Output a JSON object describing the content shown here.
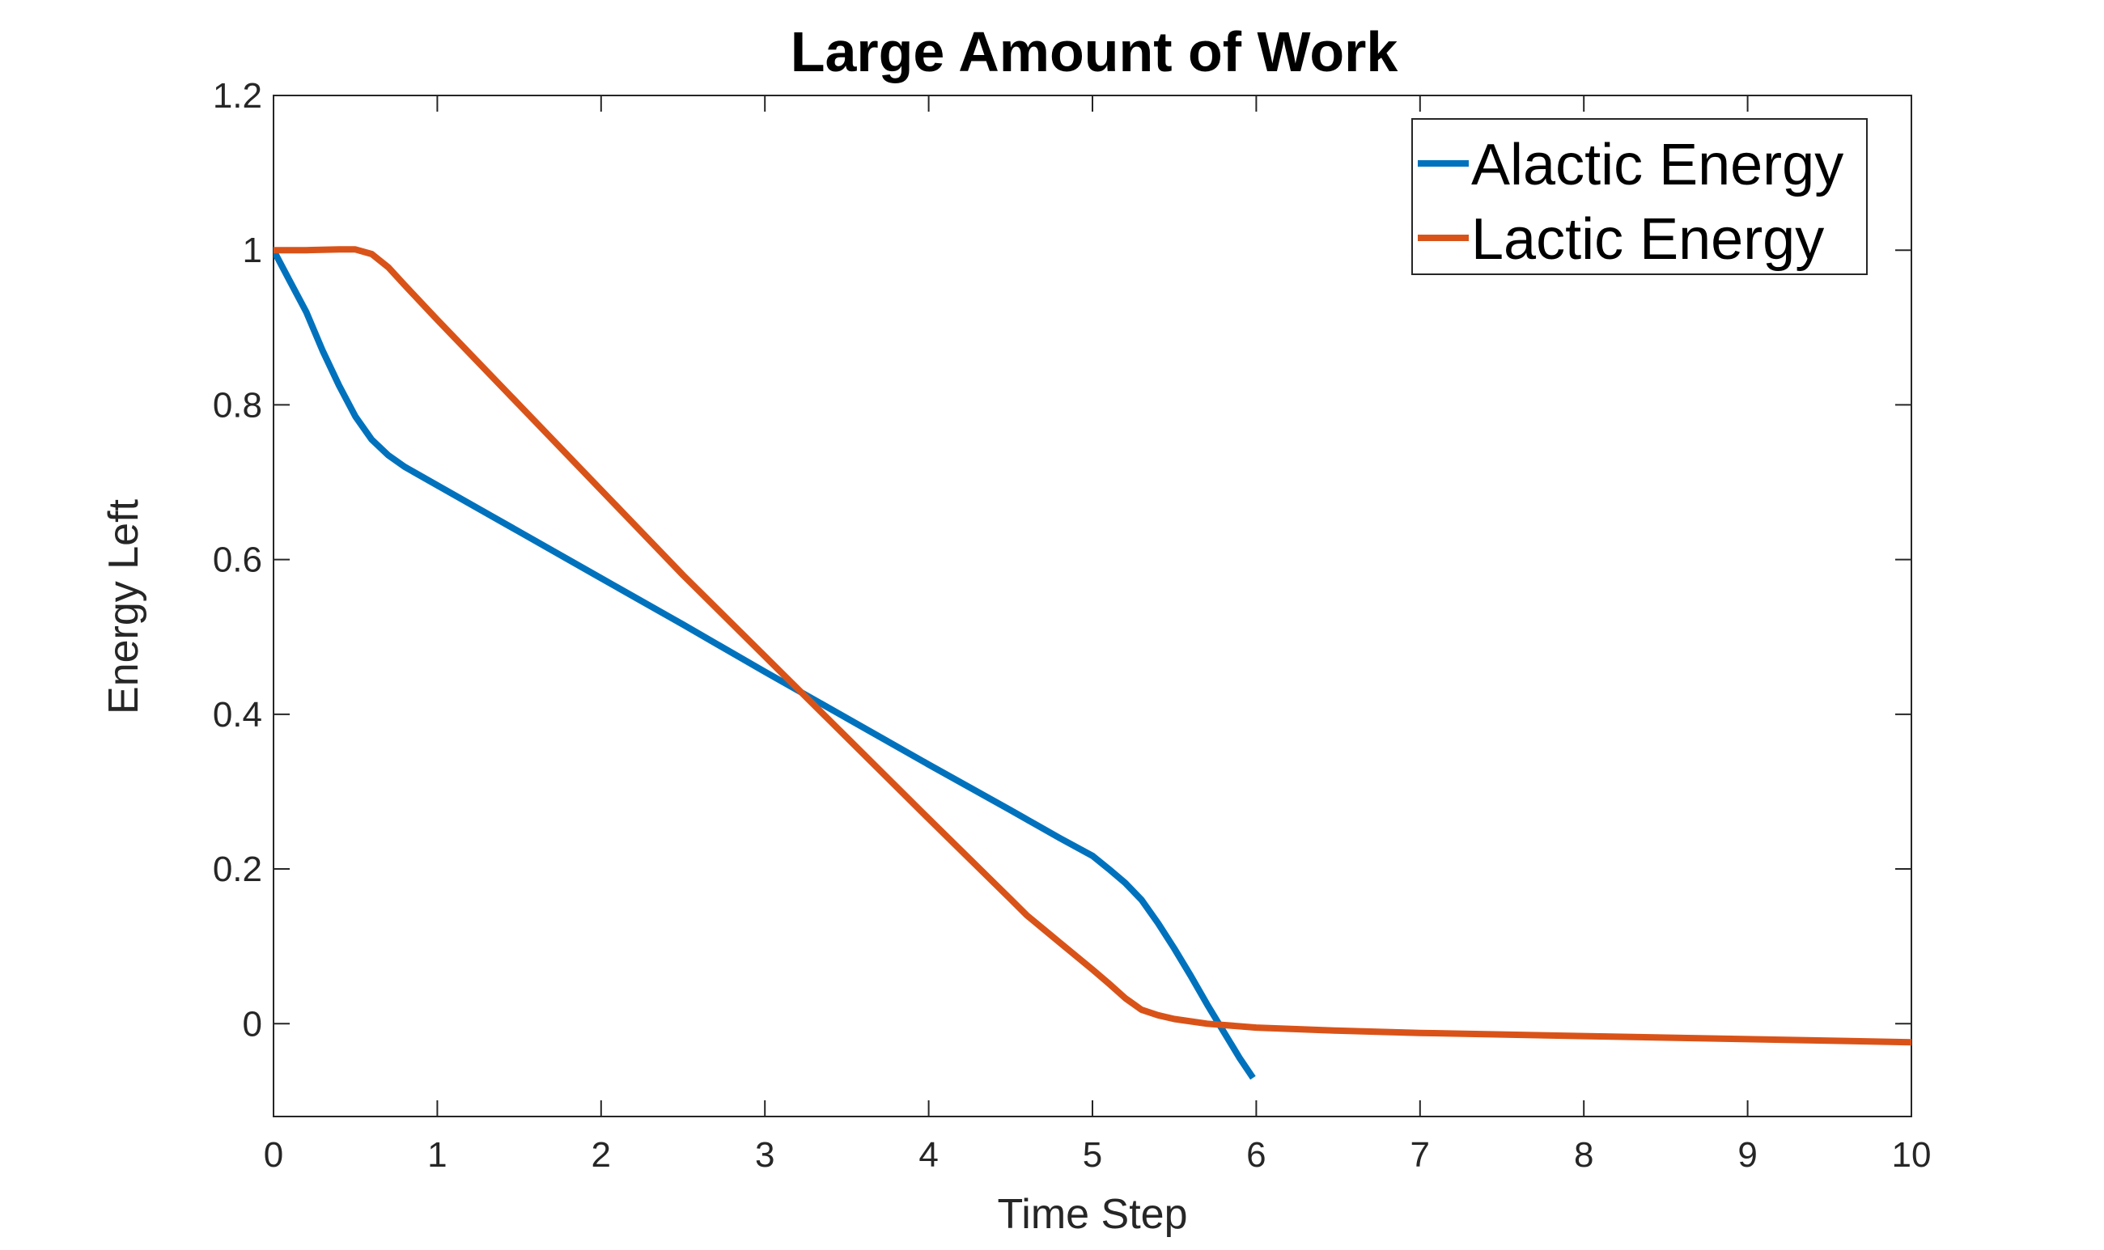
{
  "chart_data": {
    "type": "line",
    "title": "Large Amount of Work",
    "xlabel": "Time Step",
    "ylabel": "Energy Left",
    "xlim": [
      0,
      10
    ],
    "ylim": [
      -0.12,
      1.2
    ],
    "xticks": [
      0,
      1,
      2,
      3,
      4,
      5,
      6,
      7,
      8,
      9,
      10
    ],
    "xtick_labels": [
      "0",
      "1",
      "2",
      "3",
      "4",
      "5",
      "6",
      "7",
      "8",
      "9",
      "10"
    ],
    "yticks": [
      0,
      0.2,
      0.4,
      0.6,
      0.8,
      1,
      1.2
    ],
    "ytick_labels": [
      "0",
      "0.2",
      "0.4",
      "0.6",
      "0.8",
      "1",
      "1.2"
    ],
    "grid": false,
    "legend_position": "top-right",
    "series": [
      {
        "name": "Alactic Energy",
        "color": "#0072BD",
        "x": [
          0,
          0.1,
          0.2,
          0.3,
          0.4,
          0.5,
          0.6,
          0.7,
          0.8,
          1,
          1.5,
          2,
          2.5,
          3,
          3.5,
          4,
          4.5,
          4.8,
          5,
          5.1,
          5.2,
          5.3,
          5.4,
          5.5,
          5.6,
          5.7,
          5.8,
          5.9,
          5.98
        ],
        "y": [
          1,
          0.96,
          0.92,
          0.87,
          0.825,
          0.785,
          0.755,
          0.735,
          0.72,
          0.696,
          0.636,
          0.576,
          0.516,
          0.455,
          0.395,
          0.335,
          0.276,
          0.24,
          0.217,
          0.2,
          0.182,
          0.16,
          0.13,
          0.097,
          0.062,
          0.025,
          -0.01,
          -0.045,
          -0.07
        ]
      },
      {
        "name": "Lactic Energy",
        "color": "#D95319",
        "x": [
          0,
          0.2,
          0.4,
          0.5,
          0.6,
          0.7,
          0.8,
          1,
          1.5,
          2,
          2.5,
          3,
          3.5,
          4,
          4.5,
          4.6,
          4.8,
          5,
          5.1,
          5.2,
          5.3,
          5.4,
          5.5,
          5.7,
          6,
          6.5,
          7,
          8,
          9,
          10
        ],
        "y": [
          1,
          1,
          1.001,
          1.001,
          0.995,
          0.978,
          0.955,
          0.91,
          0.8,
          0.69,
          0.58,
          0.475,
          0.37,
          0.265,
          0.161,
          0.14,
          0.105,
          0.07,
          0.052,
          0.033,
          0.018,
          0.011,
          0.006,
          0.0,
          -0.005,
          -0.009,
          -0.012,
          -0.016,
          -0.02,
          -0.024
        ]
      }
    ]
  }
}
